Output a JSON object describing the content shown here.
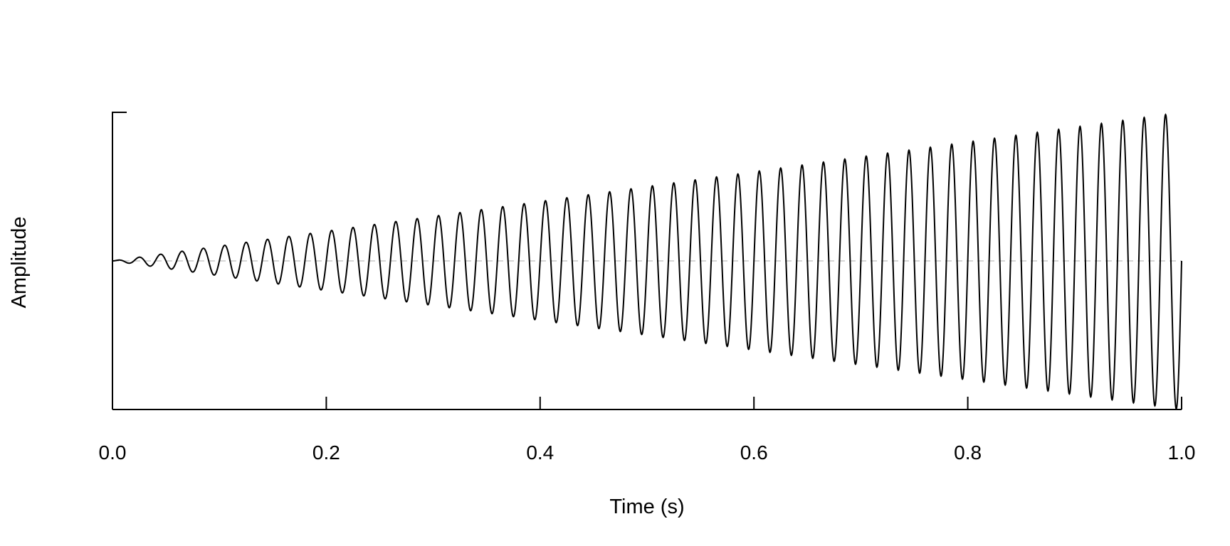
{
  "chart_data": {
    "type": "line",
    "title": "",
    "xlabel": "Time (s)",
    "ylabel": "Amplitude",
    "xlim": [
      0.0,
      1.0
    ],
    "ylim": [
      -1.0,
      1.0
    ],
    "x_ticks": [
      "0.0",
      "0.2",
      "0.4",
      "0.6",
      "0.8",
      "1.0"
    ],
    "x_tick_values": [
      0.0,
      0.2,
      0.4,
      0.6,
      0.8,
      1.0
    ],
    "grid": false,
    "legend": "none",
    "baseline": {
      "y": 0.0,
      "style": "dashed",
      "color": "#c8c8c8"
    },
    "series": [
      {
        "color": "#000000",
        "signal": "sine with linearly increasing amplitude",
        "frequency_hz": 50,
        "amplitude_start": 0.0,
        "amplitude_end": 1.0,
        "samples": 4000
      }
    ]
  }
}
